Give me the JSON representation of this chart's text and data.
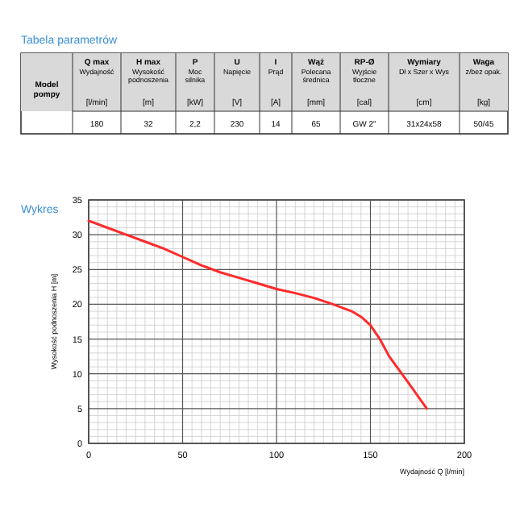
{
  "chart_data": [
    {
      "type": "other",
      "title": "Tabela parametrów",
      "annotations": [
        "Model\npompy",
        "Q max\nWydajność\n[l/min]",
        "H max\nWysokość\npodnoszenia\n[m]",
        "P\nMoc\nsilnika\n[kW]",
        "U\nNapięcie\n[V]",
        "I\nPrąd\n[A]",
        "Wąż\nPolecana\nśrednica\n[mm]",
        "RP-Ø\nWyjście\ntłoczne\n[cal]",
        "Wymiary\nDł x Szer x Wys\n[cm]",
        "Waga\nz/bez opak.\n[kg]",
        "180",
        "32",
        "2,2",
        "230",
        "14",
        "65",
        "GW 2\"",
        "31x24x58",
        "50/45"
      ]
    },
    {
      "type": "line",
      "title": "Wykres",
      "xlabel": "Wydajność Q [l/min]",
      "ylabel": "Wysokość podnoszenia H [m]",
      "x": [
        0,
        10,
        20,
        30,
        40,
        50,
        60,
        70,
        80,
        90,
        100,
        110,
        120,
        130,
        140,
        145,
        150,
        155,
        160,
        170,
        180
      ],
      "series": [
        {
          "color": "#ff2a2a",
          "values": [
            32,
            31,
            30,
            29,
            28,
            26.8,
            25.6,
            24.6,
            23.8,
            23,
            22.2,
            21.6,
            20.9,
            20,
            19,
            18.2,
            17,
            15,
            12.5,
            8.8,
            5
          ]
        }
      ],
      "xlim": [
        0,
        200
      ],
      "ylim": [
        0,
        35
      ],
      "xticks": [
        0,
        50,
        100,
        150,
        200
      ],
      "yticks": [
        0,
        5,
        10,
        15,
        20,
        25,
        30,
        35
      ],
      "grid": true,
      "marker": "none",
      "line_style": "solid"
    }
  ]
}
